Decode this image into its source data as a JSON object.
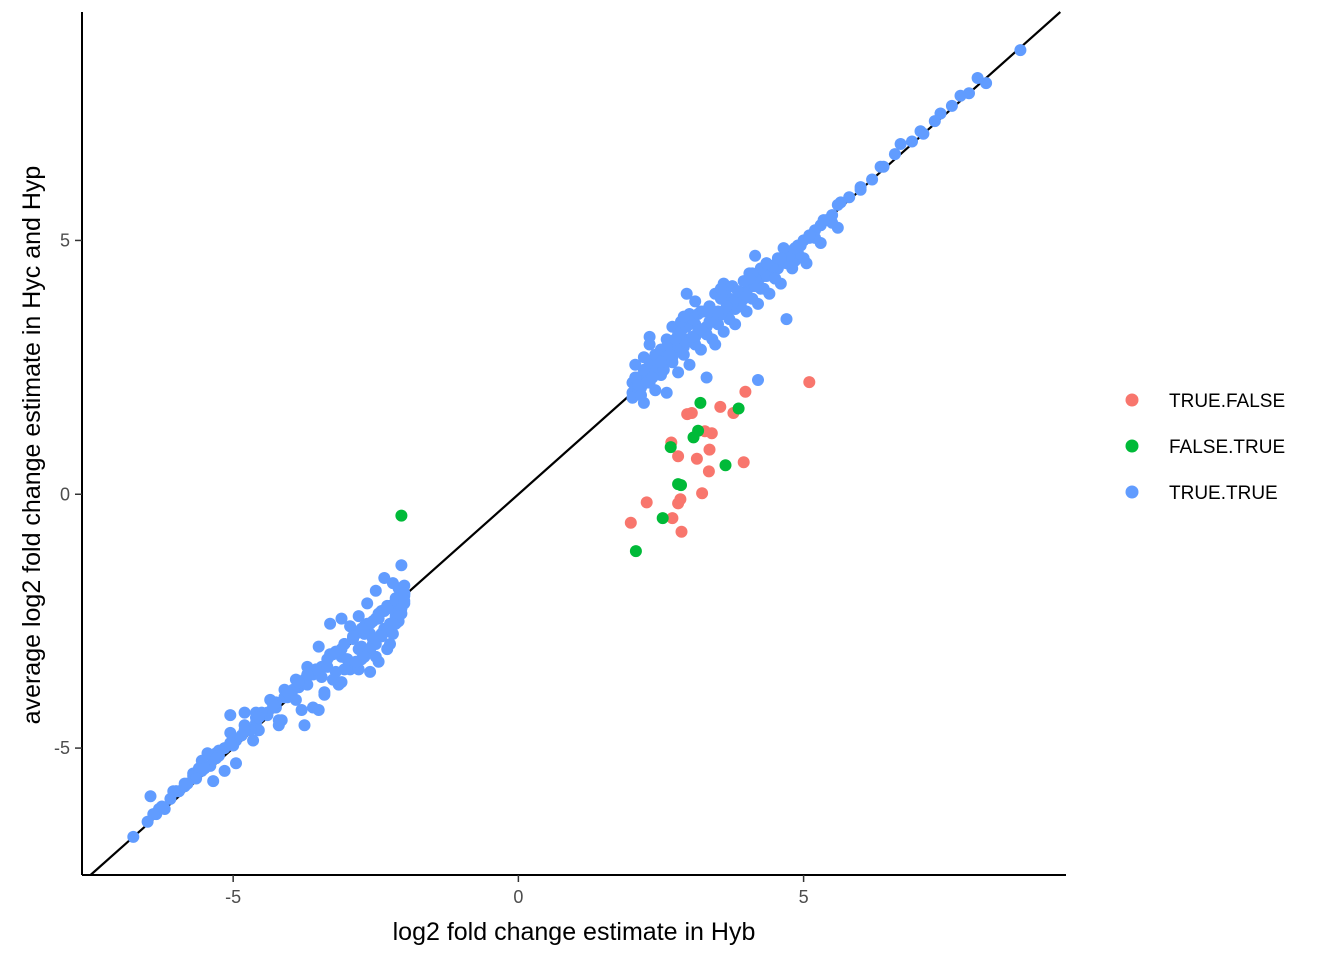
{
  "colors": {
    "TRUE.FALSE": "#F8766D",
    "FALSE.TRUE": "#00BA38",
    "TRUE.TRUE": "#619CFF"
  },
  "chart_data": {
    "type": "scatter",
    "title": "",
    "xlabel": "log2 fold change estimate in Hyb",
    "ylabel": "average log2 fold change estimate in Hyc and Hyp",
    "xlim": [
      -7.65,
      9.6
    ],
    "ylim": [
      -7.5,
      9.5
    ],
    "xticks": [
      -5,
      0,
      5
    ],
    "yticks": [
      -5,
      0,
      5
    ],
    "xtick_labels": [
      "-5",
      "0",
      "5"
    ],
    "ytick_labels": [
      "-5",
      "0",
      "5"
    ],
    "reference_line": {
      "slope": 1,
      "intercept": 0
    },
    "grid": false,
    "legend": {
      "placement": "right",
      "entries": [
        "TRUE.FALSE",
        "FALSE.TRUE",
        "TRUE.TRUE"
      ]
    },
    "series": [
      {
        "name": "TRUE.FALSE",
        "x": [
          1.97,
          2.25,
          2.68,
          2.8,
          2.8,
          2.86,
          2.96,
          3.04,
          3.13,
          3.22,
          3.27,
          3.34,
          3.35,
          3.39,
          3.54,
          3.77,
          3.95,
          3.98,
          5.1,
          2.84,
          2.7
        ],
        "y": [
          -0.56,
          -0.16,
          1.02,
          -0.18,
          0.75,
          -0.74,
          1.58,
          1.6,
          0.7,
          0.02,
          1.24,
          0.45,
          0.88,
          1.2,
          1.72,
          1.6,
          0.63,
          2.02,
          2.21,
          -0.1,
          -0.47
        ]
      },
      {
        "name": "FALSE.TRUE",
        "x": [
          -2.05,
          2.06,
          2.53,
          2.67,
          2.8,
          2.85,
          3.07,
          3.15,
          3.19,
          3.63,
          3.86
        ],
        "y": [
          -0.42,
          -1.12,
          -0.47,
          0.93,
          0.2,
          0.18,
          1.12,
          1.25,
          1.8,
          0.57,
          1.69
        ]
      },
      {
        "name": "TRUE.TRUE",
        "x": [
          -6.75,
          -6.45,
          -6.35,
          -6.2,
          -6.05,
          -5.85,
          -5.7,
          -5.55,
          -5.35,
          -5.15,
          -4.95,
          -4.75,
          -4.55,
          -4.4,
          -4.25,
          -4.05,
          -3.85,
          -3.65,
          -3.45,
          -3.25,
          -3.05,
          -2.85,
          -2.65,
          -2.45,
          -2.3,
          -2.15,
          -2.05,
          -6.3,
          -5.95,
          -5.6,
          -5.25,
          -5.0,
          -4.85,
          -4.6,
          -4.3,
          -4.0,
          -3.75,
          -3.55,
          -3.3,
          -3.1,
          -2.9,
          -2.7,
          -2.55,
          -2.4,
          -2.25,
          -2.1,
          -2.0,
          -5.45,
          -5.05,
          -4.65,
          -4.15,
          -3.9,
          -3.6,
          -3.4,
          -3.15,
          -2.95,
          -2.75,
          -2.55,
          -2.4,
          -2.25,
          -2.15,
          -2.05,
          -5.35,
          -5.15,
          -4.95,
          -4.55,
          -4.2,
          -3.75,
          -3.5,
          -3.25,
          -3.0,
          -2.8,
          -2.6,
          -2.45,
          -2.3,
          -2.15,
          -5.4,
          -5.0,
          -4.7,
          -4.4,
          -4.1,
          -3.85,
          -3.6,
          -3.35,
          -3.1,
          -2.9,
          -2.7,
          -2.5,
          -2.35,
          -2.2,
          -2.1,
          -3.05,
          -2.85,
          -2.6,
          -2.45,
          -2.3,
          -2.2,
          -2.1,
          -2.05,
          -2.0,
          -2.0,
          -2.1,
          -2.2,
          -2.35,
          -2.5,
          -2.65,
          -2.8,
          -2.95,
          -3.1,
          -3.3,
          -3.5,
          -3.7,
          -3.9,
          -4.1,
          -4.35,
          -4.6,
          -5.3,
          -5.05,
          -4.8,
          -4.5,
          -4.25,
          -3.95,
          -3.7,
          -3.45,
          -3.2,
          -3.0,
          -2.75,
          -2.55,
          -2.35,
          -2.15,
          -5.55,
          -5.7,
          -5.85,
          -6.0,
          -5.25,
          -4.8,
          -4.6,
          -4.2,
          -3.8,
          -3.4,
          -3.1,
          -2.8,
          -2.5,
          -2.25,
          -2.05,
          -2.0,
          -2.05,
          -2.15,
          -2.3,
          -2.45,
          -2.6,
          -2.75,
          -2.9,
          -3.05,
          -3.2,
          -3.35,
          -3.55,
          -3.7,
          -3.85,
          -4.05,
          -4.3,
          -4.55,
          -4.8,
          -5.05,
          -5.3,
          -5.5,
          -5.65,
          -5.8,
          -6.0,
          -6.1,
          -6.25,
          -6.4,
          -6.5,
          -2.0,
          -2.0,
          -2.05,
          -2.1,
          -2.2,
          -2.3,
          -2.4,
          -2.5,
          -2.6,
          -2.7,
          -2.85,
          2.0,
          2.0,
          2.05,
          2.1,
          2.15,
          2.2,
          2.3,
          2.4,
          2.5,
          2.6,
          2.7,
          2.8,
          2.9,
          3.0,
          3.1,
          3.2,
          3.3,
          3.4,
          3.5,
          3.6,
          3.7,
          3.8,
          3.9,
          4.0,
          4.1,
          4.2,
          4.3,
          4.4,
          4.5,
          4.6,
          4.7,
          4.8,
          4.9,
          5.0,
          5.1,
          5.2,
          5.3,
          5.4,
          5.5,
          5.6,
          5.8,
          6.0,
          6.2,
          6.4,
          6.6,
          6.9,
          7.1,
          7.3,
          7.6,
          7.9,
          8.2,
          8.8,
          2.05,
          2.1,
          2.2,
          2.3,
          2.4,
          2.5,
          2.6,
          2.7,
          2.8,
          2.9,
          3.0,
          3.1,
          3.2,
          3.35,
          3.5,
          3.65,
          3.8,
          3.95,
          4.1,
          4.25,
          4.4,
          4.55,
          4.7,
          4.85,
          2.2,
          2.4,
          2.6,
          2.8,
          3.0,
          3.2,
          3.4,
          3.6,
          3.8,
          4.0,
          4.2,
          4.4,
          4.6,
          4.8,
          5.0,
          5.3,
          5.6,
          2.1,
          2.3,
          2.5,
          2.7,
          2.9,
          3.1,
          3.3,
          3.5,
          3.7,
          3.9,
          4.1,
          4.3,
          4.5,
          4.7,
          4.9,
          5.2,
          5.5,
          2.15,
          2.35,
          2.55,
          2.75,
          2.95,
          3.15,
          3.35,
          3.55,
          3.75,
          3.95,
          4.15,
          4.35,
          4.55,
          4.75,
          4.95,
          2.3,
          2.45,
          2.6,
          2.75,
          2.9,
          3.05,
          3.2,
          3.35,
          3.5,
          3.65,
          3.8,
          2.0,
          2.05,
          2.1,
          2.15,
          2.2,
          2.25,
          2.3,
          2.35,
          2.4,
          2.45,
          2.5,
          2.55,
          2.65,
          2.75,
          2.85,
          2.95,
          3.05,
          3.15,
          3.25,
          3.35,
          3.45,
          3.55,
          3.65,
          3.75,
          3.85,
          3.95,
          4.05,
          4.15,
          4.25,
          4.35,
          4.45,
          4.55,
          4.65,
          2.6,
          2.85,
          3.1,
          3.35,
          3.6,
          3.85,
          4.1,
          4.35,
          4.6,
          4.85,
          5.1,
          5.35,
          5.65,
          6.0,
          6.35,
          6.7,
          7.05,
          7.4,
          7.75,
          8.05,
          2.3,
          2.9,
          3.5,
          4.0,
          4.5,
          2.5,
          3.3,
          4.2,
          4.7,
          5.05,
          2.95,
          3.55,
          4.15,
          2.65,
          3.45,
          4.05
        ],
        "y": [
          -6.75,
          -5.95,
          -6.3,
          -6.2,
          -5.85,
          -5.7,
          -5.5,
          -5.45,
          -5.2,
          -5.0,
          -4.85,
          -4.65,
          -4.35,
          -4.35,
          -4.2,
          -4.0,
          -3.8,
          -3.55,
          -3.4,
          -3.15,
          -2.95,
          -2.75,
          -2.55,
          -2.35,
          -2.2,
          -2.05,
          -1.95,
          -6.2,
          -5.85,
          -5.4,
          -5.05,
          -4.85,
          -4.75,
          -4.5,
          -4.2,
          -3.9,
          -3.65,
          -3.5,
          -3.15,
          -3.05,
          -2.85,
          -2.6,
          -2.5,
          -2.3,
          -2.2,
          -2.05,
          -1.95,
          -5.1,
          -4.35,
          -4.85,
          -4.45,
          -4.05,
          -4.2,
          -3.95,
          -3.75,
          -3.45,
          -3.25,
          -2.95,
          -2.75,
          -2.55,
          -2.45,
          -2.2,
          -5.65,
          -5.45,
          -5.3,
          -4.65,
          -4.55,
          -4.55,
          -4.25,
          -3.65,
          -3.25,
          -3.05,
          -2.75,
          -2.45,
          -2.7,
          -2.4,
          -5.35,
          -4.95,
          -4.65,
          -4.3,
          -4.0,
          -3.75,
          -3.55,
          -3.4,
          -3.2,
          -2.85,
          -2.75,
          -2.45,
          -2.3,
          -2.25,
          -2.05,
          -3.45,
          -3.35,
          -3.5,
          -3.3,
          -3.05,
          -2.75,
          -2.5,
          -2.35,
          -2.15,
          -2.0,
          -1.85,
          -1.75,
          -1.65,
          -1.9,
          -2.15,
          -2.4,
          -2.6,
          -2.45,
          -2.55,
          -3.0,
          -3.4,
          -3.65,
          -3.85,
          -4.05,
          -4.3,
          -5.1,
          -4.7,
          -4.55,
          -4.3,
          -4.1,
          -3.85,
          -3.75,
          -3.6,
          -3.5,
          -3.25,
          -3.0,
          -2.85,
          -2.65,
          -2.55,
          -5.25,
          -5.55,
          -5.75,
          -5.85,
          -5.15,
          -4.3,
          -4.4,
          -4.45,
          -4.25,
          -3.9,
          -3.7,
          -3.45,
          -3.2,
          -2.95,
          -1.4,
          -1.8,
          -2.0,
          -2.1,
          -2.25,
          -2.4,
          -2.55,
          -2.65,
          -2.8,
          -2.95,
          -3.1,
          -3.25,
          -3.45,
          -3.55,
          -3.7,
          -3.9,
          -4.15,
          -4.4,
          -4.65,
          -4.9,
          -5.2,
          -5.4,
          -5.6,
          -5.7,
          -5.85,
          -6.0,
          -6.15,
          -6.3,
          -6.45,
          -1.95,
          -2.1,
          -2.25,
          -2.4,
          -2.55,
          -2.65,
          -2.8,
          -2.95,
          -3.05,
          -3.2,
          -3.3,
          2.0,
          2.2,
          2.1,
          2.25,
          2.1,
          2.35,
          2.35,
          2.45,
          2.55,
          2.65,
          2.7,
          2.85,
          2.9,
          3.05,
          3.1,
          3.2,
          3.3,
          3.4,
          3.5,
          3.55,
          3.65,
          3.8,
          3.9,
          4.0,
          4.1,
          4.2,
          4.3,
          4.4,
          4.5,
          4.6,
          4.7,
          4.8,
          4.9,
          5.0,
          5.05,
          5.2,
          5.3,
          5.4,
          5.5,
          5.7,
          5.85,
          6.0,
          6.2,
          6.45,
          6.7,
          6.95,
          7.1,
          7.35,
          7.65,
          7.9,
          8.1,
          8.75,
          2.55,
          2.3,
          2.7,
          2.95,
          2.6,
          2.85,
          3.05,
          3.3,
          3.15,
          3.45,
          3.55,
          3.35,
          3.6,
          3.7,
          3.55,
          3.9,
          3.65,
          3.85,
          4.2,
          4.05,
          4.35,
          4.45,
          4.75,
          4.6,
          1.8,
          2.05,
          2.0,
          2.4,
          2.55,
          2.85,
          3.05,
          3.2,
          3.35,
          3.6,
          3.75,
          3.95,
          4.15,
          4.45,
          4.65,
          4.95,
          5.25,
          2.05,
          2.2,
          2.35,
          2.6,
          2.75,
          2.95,
          3.15,
          3.35,
          3.45,
          3.7,
          3.85,
          4.05,
          4.25,
          4.55,
          4.75,
          5.05,
          5.35,
          2.3,
          2.45,
          2.65,
          2.8,
          3.0,
          3.2,
          3.4,
          3.55,
          3.75,
          3.95,
          4.1,
          4.3,
          4.5,
          4.7,
          4.9,
          2.5,
          2.55,
          2.7,
          2.9,
          3.05,
          3.1,
          3.25,
          3.4,
          3.55,
          3.7,
          3.85,
          1.9,
          2.3,
          2.15,
          1.95,
          2.45,
          2.2,
          2.6,
          2.3,
          2.75,
          2.5,
          2.85,
          2.45,
          2.9,
          3.05,
          3.2,
          3.3,
          3.45,
          3.55,
          3.6,
          3.7,
          3.95,
          3.85,
          4.05,
          4.1,
          4.0,
          4.2,
          4.35,
          4.25,
          4.45,
          4.55,
          4.5,
          4.65,
          4.85,
          2.9,
          3.4,
          3.8,
          3.6,
          4.15,
          4.0,
          4.35,
          4.55,
          4.65,
          4.85,
          5.1,
          5.4,
          5.75,
          6.05,
          6.45,
          6.9,
          7.15,
          7.5,
          7.85,
          8.2,
          3.1,
          3.5,
          3.6,
          3.9,
          4.25,
          2.6,
          2.3,
          2.25,
          3.45,
          4.55,
          3.95,
          4.05,
          4.7,
          2.75,
          2.95,
          4.25
        ]
      }
    ]
  }
}
